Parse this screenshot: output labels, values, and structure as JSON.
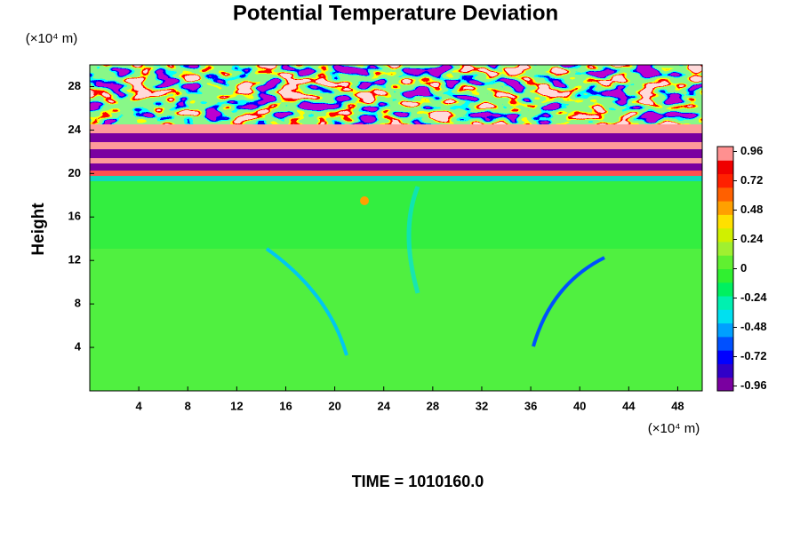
{
  "chart_data": {
    "type": "heatmap",
    "title": "Potential Temperature Deviation",
    "y_label": "Height",
    "y_unit": "(×10⁴ m)",
    "x_unit": "(×10⁴ m)",
    "footer": "TIME = 1010160.0",
    "xlim": [
      0,
      50
    ],
    "xticks": [
      4,
      8,
      12,
      16,
      20,
      24,
      28,
      32,
      36,
      40,
      44,
      48
    ],
    "ylim": [
      0,
      30
    ],
    "yticks": [
      4,
      8,
      12,
      16,
      20,
      24,
      28
    ],
    "clim": [
      -1,
      1
    ],
    "cticks": [
      0.96,
      0.72,
      0.48,
      0.24,
      0,
      -0.24,
      -0.48,
      -0.72,
      -0.96
    ],
    "colors": [
      "#7a00a0",
      "#3000c8",
      "#0000ff",
      "#0050ff",
      "#00a0ff",
      "#00e0f0",
      "#00f0b0",
      "#00f060",
      "#30f030",
      "#60f030",
      "#a0f030",
      "#d0f000",
      "#ffe000",
      "#ffa000",
      "#ff6000",
      "#ff2000",
      "#f00000",
      "#ff9090"
    ]
  }
}
